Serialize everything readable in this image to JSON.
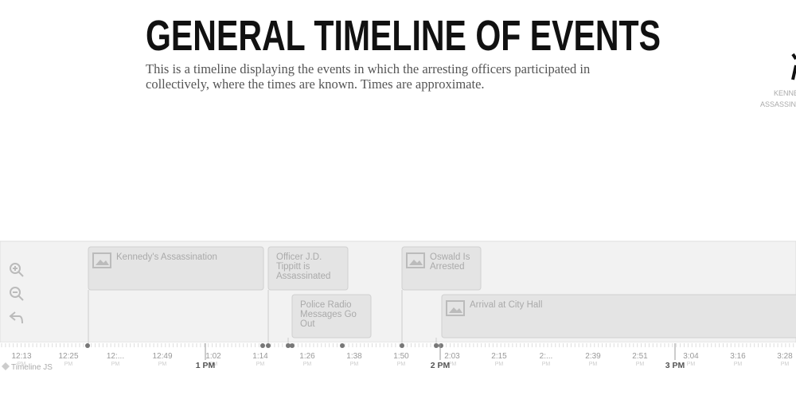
{
  "header": {
    "title": "GENERAL TIMELINE OF EVENTS",
    "description_lines": [
      "This is a timeline displaying the events in which the arresting officers participated in",
      "collectively, where the times are known. Times are approximate."
    ]
  },
  "side_card": {
    "lines": [
      "KENNE",
      "ASSASSINA"
    ]
  },
  "events": [
    {
      "title_lines": [
        "Kennedy's Assassination"
      ]
    },
    {
      "title_lines": [
        "Officer J.D.",
        "Tippitt is",
        "Assassinated"
      ]
    },
    {
      "title_lines": [
        "Police Radio",
        "Messages Go",
        "Out"
      ]
    },
    {
      "title_lines": [
        "Oswald Is",
        "Arrested"
      ]
    },
    {
      "title_lines": [
        "Arrival at City Hall"
      ]
    }
  ],
  "axis": {
    "minor_labels": [
      "12:13",
      "12:25",
      "12:...",
      "12:49",
      "1:02",
      "1:14",
      "1:26",
      "1:38",
      "1:50",
      "2:03",
      "2:15",
      "2:...",
      "2:39",
      "2:51",
      "3:04",
      "3:16",
      "3:28"
    ],
    "meridiem": "PM",
    "major_labels": [
      "1 PM",
      "2 PM",
      "3 PM"
    ]
  },
  "footer": {
    "brand": "Timeline JS"
  }
}
